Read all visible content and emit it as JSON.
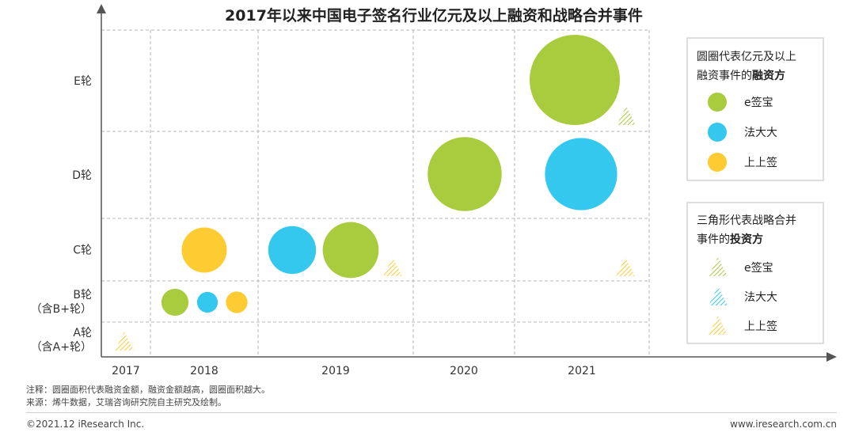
{
  "chart_data": {
    "type": "scatter",
    "title": "2017年以来中国电子签名行业亿元及以上融资和战略合并事件",
    "x_categories": [
      "2017",
      "2018",
      "2019",
      "2020",
      "2021"
    ],
    "y_categories": [
      {
        "lines": [
          "A轮",
          "（含A+轮）"
        ]
      },
      {
        "lines": [
          "B轮",
          "（含B+轮）"
        ]
      },
      {
        "lines": [
          "C轮"
        ]
      },
      {
        "lines": [
          "D轮"
        ]
      },
      {
        "lines": [
          "E轮"
        ]
      }
    ],
    "companies": [
      {
        "name": "e签宝",
        "color": "#a8cc3e"
      },
      {
        "name": "法大大",
        "color": "#35c8ef"
      },
      {
        "name": "上上签",
        "color": "#fccc32"
      }
    ],
    "financing_events": [
      {
        "year": "2018",
        "round": "B轮（含B+轮）",
        "company": "e签宝",
        "relative_size": 0.3
      },
      {
        "year": "2018",
        "round": "B轮（含B+轮）",
        "company": "法大大",
        "relative_size": 0.23
      },
      {
        "year": "2018",
        "round": "B轮（含B+轮）",
        "company": "上上签",
        "relative_size": 0.24
      },
      {
        "year": "2018",
        "round": "C轮",
        "company": "上上签",
        "relative_size": 0.5
      },
      {
        "year": "2019",
        "round": "C轮",
        "company": "法大大",
        "relative_size": 0.53
      },
      {
        "year": "2019",
        "round": "C轮",
        "company": "e签宝",
        "relative_size": 0.62
      },
      {
        "year": "2020",
        "round": "D轮",
        "company": "e签宝",
        "relative_size": 0.82
      },
      {
        "year": "2021",
        "round": "D轮",
        "company": "法大大",
        "relative_size": 0.8
      },
      {
        "year": "2021",
        "round": "E轮",
        "company": "e签宝",
        "relative_size": 1.0
      }
    ],
    "strategic_mergers": [
      {
        "year": "2017",
        "round": "A轮（含A+轮）",
        "company": "上上签"
      },
      {
        "year": "2019",
        "round": "C轮",
        "company": "上上签"
      },
      {
        "year": "2021",
        "round": "C轮",
        "company": "上上签"
      },
      {
        "year": "2021",
        "round": "E轮",
        "company": "e签宝"
      }
    ],
    "legend_circles": {
      "title_line1": "圆圈代表亿元及以上",
      "title_line2_prefix": "融资事件的",
      "title_line2_bold": "融资方"
    },
    "legend_triangles": {
      "title_line1": "三角形代表战略合并",
      "title_line2_prefix": "事件的",
      "title_line2_bold": "投资方"
    },
    "grid": true
  },
  "notes": {
    "note1": "注释：圆圈面积代表融资金额，融资金额越高，圆圈面积越大。",
    "note2": "来源：烯牛数据，艾瑞咨询研究院自主研究及绘制。"
  },
  "footer": {
    "copyright": "©2021.12 iResearch Inc.",
    "website": "www.iresearch.com.cn"
  }
}
